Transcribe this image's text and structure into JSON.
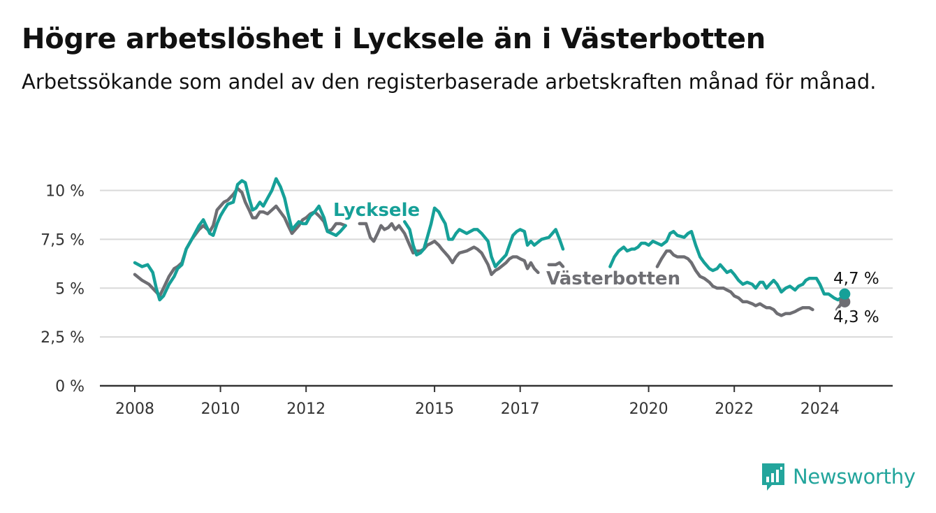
{
  "title": "Högre arbetslöshet i Lycksele än i Västerbotten",
  "subtitle": "Arbetssökande som andel av den registerbaserade arbetskraften månad för månad.",
  "brand": {
    "name": "Newsworthy",
    "icon": "bar-chart-logo-icon",
    "color": "#23a59c"
  },
  "colors": {
    "lycksele": "#16a098",
    "vasterbotten": "#6e6e73",
    "grid": "#d9d9d9",
    "axis": "#333333"
  },
  "chart_data": {
    "type": "line",
    "title": "Högre arbetslöshet i Lycksele än i Västerbotten",
    "xlabel": "",
    "ylabel": "",
    "ylim": [
      0,
      11
    ],
    "y_ticks": [
      0,
      2.5,
      5,
      7.5,
      10
    ],
    "y_tick_labels": [
      "0 %",
      "2,5 %",
      "5 %",
      "7,5 %",
      "10 %"
    ],
    "x_ticks": [
      2008,
      2010,
      2012,
      2015,
      2017,
      2020,
      2022,
      2024
    ],
    "x_tick_labels": [
      "2008",
      "2010",
      "2012",
      "2015",
      "2017",
      "2020",
      "2022",
      "2024"
    ],
    "grid": true,
    "legend": "inline labels",
    "series": [
      {
        "name": "Lycksele",
        "end_label": "4,7 %",
        "points": [
          [
            2008.0,
            6.3
          ],
          [
            2008.17,
            6.1
          ],
          [
            2008.3,
            6.2
          ],
          [
            2008.42,
            5.8
          ],
          [
            2008.5,
            5.0
          ],
          [
            2008.58,
            4.4
          ],
          [
            2008.67,
            4.6
          ],
          [
            2008.8,
            5.2
          ],
          [
            2008.92,
            5.6
          ],
          [
            2009.0,
            6.0
          ],
          [
            2009.1,
            6.2
          ],
          [
            2009.2,
            7.0
          ],
          [
            2009.33,
            7.5
          ],
          [
            2009.5,
            8.2
          ],
          [
            2009.6,
            8.5
          ],
          [
            2009.75,
            7.8
          ],
          [
            2009.83,
            7.7
          ],
          [
            2009.92,
            8.3
          ],
          [
            2010.0,
            8.7
          ],
          [
            2010.08,
            9.0
          ],
          [
            2010.17,
            9.3
          ],
          [
            2010.3,
            9.4
          ],
          [
            2010.4,
            10.3
          ],
          [
            2010.5,
            10.5
          ],
          [
            2010.58,
            10.4
          ],
          [
            2010.67,
            9.6
          ],
          [
            2010.75,
            9.0
          ],
          [
            2010.83,
            9.1
          ],
          [
            2010.92,
            9.4
          ],
          [
            2011.0,
            9.2
          ],
          [
            2011.1,
            9.6
          ],
          [
            2011.2,
            10.0
          ],
          [
            2011.3,
            10.6
          ],
          [
            2011.4,
            10.2
          ],
          [
            2011.5,
            9.6
          ],
          [
            2011.58,
            8.8
          ],
          [
            2011.67,
            8.0
          ],
          [
            2011.75,
            8.2
          ],
          [
            2011.83,
            8.4
          ],
          [
            2011.92,
            8.3
          ],
          [
            2012.0,
            8.3
          ],
          [
            2012.1,
            8.7
          ],
          [
            2012.2,
            8.9
          ],
          [
            2012.3,
            9.2
          ],
          [
            2012.42,
            8.6
          ],
          [
            2012.5,
            7.9
          ],
          [
            2012.6,
            7.8
          ],
          [
            2012.7,
            7.7
          ],
          [
            2012.8,
            7.9
          ],
          [
            2012.92,
            8.2
          ],
          [
            2013.0,
            null
          ],
          [
            2013.8,
            null
          ],
          [
            2014.1,
            null
          ],
          [
            2014.3,
            8.4
          ],
          [
            2014.42,
            8.0
          ],
          [
            2014.5,
            7.2
          ],
          [
            2014.58,
            6.7
          ],
          [
            2014.67,
            6.8
          ],
          [
            2014.75,
            7.0
          ],
          [
            2014.83,
            7.6
          ],
          [
            2014.92,
            8.3
          ],
          [
            2015.0,
            9.1
          ],
          [
            2015.1,
            8.9
          ],
          [
            2015.17,
            8.6
          ],
          [
            2015.25,
            8.3
          ],
          [
            2015.33,
            7.5
          ],
          [
            2015.42,
            7.5
          ],
          [
            2015.5,
            7.8
          ],
          [
            2015.58,
            8.0
          ],
          [
            2015.75,
            7.8
          ],
          [
            2015.92,
            8.0
          ],
          [
            2016.0,
            8.0
          ],
          [
            2016.1,
            7.8
          ],
          [
            2016.25,
            7.4
          ],
          [
            2016.33,
            6.6
          ],
          [
            2016.42,
            6.1
          ],
          [
            2016.5,
            6.3
          ],
          [
            2016.67,
            6.7
          ],
          [
            2016.75,
            7.2
          ],
          [
            2016.83,
            7.7
          ],
          [
            2016.92,
            7.9
          ],
          [
            2017.0,
            8.0
          ],
          [
            2017.1,
            7.9
          ],
          [
            2017.17,
            7.2
          ],
          [
            2017.25,
            7.4
          ],
          [
            2017.33,
            7.2
          ],
          [
            2017.5,
            7.5
          ],
          [
            2017.67,
            7.6
          ],
          [
            2017.75,
            7.8
          ],
          [
            2017.83,
            8.0
          ],
          [
            2017.92,
            7.5
          ],
          [
            2018.0,
            7.0
          ],
          [
            2018.08,
            null
          ],
          [
            2019.1,
            6.1
          ],
          [
            2019.2,
            6.6
          ],
          [
            2019.3,
            6.9
          ],
          [
            2019.42,
            7.1
          ],
          [
            2019.5,
            6.9
          ],
          [
            2019.6,
            7.0
          ],
          [
            2019.67,
            7.0
          ],
          [
            2019.75,
            7.1
          ],
          [
            2019.83,
            7.3
          ],
          [
            2019.92,
            7.3
          ],
          [
            2020.0,
            7.2
          ],
          [
            2020.1,
            7.4
          ],
          [
            2020.2,
            7.3
          ],
          [
            2020.3,
            7.2
          ],
          [
            2020.42,
            7.4
          ],
          [
            2020.5,
            7.8
          ],
          [
            2020.58,
            7.9
          ],
          [
            2020.67,
            7.7
          ],
          [
            2020.83,
            7.6
          ],
          [
            2020.92,
            7.8
          ],
          [
            2021.0,
            7.9
          ],
          [
            2021.1,
            7.2
          ],
          [
            2021.2,
            6.6
          ],
          [
            2021.3,
            6.3
          ],
          [
            2021.42,
            6.0
          ],
          [
            2021.5,
            5.9
          ],
          [
            2021.6,
            6.0
          ],
          [
            2021.67,
            6.2
          ],
          [
            2021.75,
            6.0
          ],
          [
            2021.83,
            5.8
          ],
          [
            2021.92,
            5.9
          ],
          [
            2022.0,
            5.7
          ],
          [
            2022.1,
            5.4
          ],
          [
            2022.2,
            5.2
          ],
          [
            2022.3,
            5.3
          ],
          [
            2022.42,
            5.2
          ],
          [
            2022.5,
            5.0
          ],
          [
            2022.6,
            5.3
          ],
          [
            2022.67,
            5.3
          ],
          [
            2022.75,
            5.0
          ],
          [
            2022.83,
            5.2
          ],
          [
            2022.92,
            5.4
          ],
          [
            2023.0,
            5.2
          ],
          [
            2023.1,
            4.8
          ],
          [
            2023.2,
            5.0
          ],
          [
            2023.3,
            5.1
          ],
          [
            2023.42,
            4.9
          ],
          [
            2023.5,
            5.1
          ],
          [
            2023.6,
            5.2
          ],
          [
            2023.67,
            5.4
          ],
          [
            2023.75,
            5.5
          ],
          [
            2023.83,
            5.5
          ],
          [
            2023.92,
            5.5
          ],
          [
            2024.0,
            5.2
          ],
          [
            2024.1,
            4.7
          ],
          [
            2024.2,
            4.7
          ],
          [
            2024.33,
            4.5
          ],
          [
            2024.42,
            4.4
          ],
          [
            2024.5,
            4.5
          ],
          [
            2024.58,
            4.7
          ]
        ]
      },
      {
        "name": "Västerbotten",
        "end_label": "4,3 %",
        "points": [
          [
            2008.0,
            5.7
          ],
          [
            2008.17,
            5.4
          ],
          [
            2008.33,
            5.2
          ],
          [
            2008.5,
            4.8
          ],
          [
            2008.58,
            4.6
          ],
          [
            2008.67,
            5.0
          ],
          [
            2008.8,
            5.6
          ],
          [
            2008.92,
            6.0
          ],
          [
            2009.0,
            6.1
          ],
          [
            2009.1,
            6.3
          ],
          [
            2009.2,
            7.0
          ],
          [
            2009.33,
            7.5
          ],
          [
            2009.5,
            8.0
          ],
          [
            2009.6,
            8.2
          ],
          [
            2009.75,
            7.9
          ],
          [
            2009.83,
            8.2
          ],
          [
            2009.92,
            9.0
          ],
          [
            2010.0,
            9.2
          ],
          [
            2010.08,
            9.4
          ],
          [
            2010.17,
            9.5
          ],
          [
            2010.3,
            9.8
          ],
          [
            2010.4,
            10.1
          ],
          [
            2010.5,
            9.9
          ],
          [
            2010.58,
            9.4
          ],
          [
            2010.67,
            9.0
          ],
          [
            2010.75,
            8.6
          ],
          [
            2010.83,
            8.6
          ],
          [
            2010.92,
            8.9
          ],
          [
            2011.0,
            8.9
          ],
          [
            2011.1,
            8.8
          ],
          [
            2011.2,
            9.0
          ],
          [
            2011.3,
            9.2
          ],
          [
            2011.4,
            8.9
          ],
          [
            2011.5,
            8.6
          ],
          [
            2011.58,
            8.2
          ],
          [
            2011.67,
            7.8
          ],
          [
            2011.75,
            8.0
          ],
          [
            2011.83,
            8.2
          ],
          [
            2011.92,
            8.5
          ],
          [
            2012.0,
            8.6
          ],
          [
            2012.1,
            8.8
          ],
          [
            2012.2,
            8.9
          ],
          [
            2012.3,
            8.7
          ],
          [
            2012.42,
            8.4
          ],
          [
            2012.5,
            7.9
          ],
          [
            2012.6,
            8.0
          ],
          [
            2012.7,
            8.3
          ],
          [
            2012.8,
            8.3
          ],
          [
            2012.92,
            8.2
          ],
          [
            2013.0,
            null
          ],
          [
            2013.25,
            8.3
          ],
          [
            2013.4,
            8.3
          ],
          [
            2013.5,
            7.6
          ],
          [
            2013.58,
            7.4
          ],
          [
            2013.67,
            7.8
          ],
          [
            2013.75,
            8.2
          ],
          [
            2013.83,
            8.0
          ],
          [
            2013.92,
            8.1
          ],
          [
            2014.0,
            8.3
          ],
          [
            2014.08,
            8.0
          ],
          [
            2014.17,
            8.2
          ],
          [
            2014.3,
            7.8
          ],
          [
            2014.42,
            7.2
          ],
          [
            2014.5,
            6.8
          ],
          [
            2014.58,
            6.9
          ],
          [
            2014.67,
            6.9
          ],
          [
            2014.75,
            7.0
          ],
          [
            2014.83,
            7.2
          ],
          [
            2014.92,
            7.3
          ],
          [
            2015.0,
            7.4
          ],
          [
            2015.1,
            7.2
          ],
          [
            2015.17,
            7.0
          ],
          [
            2015.25,
            6.8
          ],
          [
            2015.33,
            6.6
          ],
          [
            2015.42,
            6.3
          ],
          [
            2015.5,
            6.6
          ],
          [
            2015.58,
            6.8
          ],
          [
            2015.75,
            6.9
          ],
          [
            2015.92,
            7.1
          ],
          [
            2016.0,
            7.0
          ],
          [
            2016.1,
            6.8
          ],
          [
            2016.25,
            6.2
          ],
          [
            2016.33,
            5.7
          ],
          [
            2016.42,
            5.9
          ],
          [
            2016.5,
            6.0
          ],
          [
            2016.67,
            6.3
          ],
          [
            2016.75,
            6.5
          ],
          [
            2016.83,
            6.6
          ],
          [
            2016.92,
            6.6
          ],
          [
            2017.0,
            6.5
          ],
          [
            2017.1,
            6.4
          ],
          [
            2017.17,
            6.0
          ],
          [
            2017.25,
            6.3
          ],
          [
            2017.33,
            6.0
          ],
          [
            2017.42,
            5.8
          ],
          [
            2017.5,
            null
          ],
          [
            2017.67,
            6.2
          ],
          [
            2017.83,
            6.2
          ],
          [
            2017.92,
            6.3
          ],
          [
            2018.0,
            6.1
          ],
          [
            2018.08,
            null
          ],
          [
            2020.2,
            6.1
          ],
          [
            2020.3,
            6.5
          ],
          [
            2020.42,
            6.9
          ],
          [
            2020.5,
            6.9
          ],
          [
            2020.58,
            6.7
          ],
          [
            2020.67,
            6.6
          ],
          [
            2020.83,
            6.6
          ],
          [
            2020.92,
            6.5
          ],
          [
            2021.0,
            6.3
          ],
          [
            2021.1,
            5.9
          ],
          [
            2021.2,
            5.6
          ],
          [
            2021.3,
            5.5
          ],
          [
            2021.42,
            5.3
          ],
          [
            2021.5,
            5.1
          ],
          [
            2021.6,
            5.0
          ],
          [
            2021.67,
            5.0
          ],
          [
            2021.75,
            5.0
          ],
          [
            2021.83,
            4.9
          ],
          [
            2021.92,
            4.8
          ],
          [
            2022.0,
            4.6
          ],
          [
            2022.1,
            4.5
          ],
          [
            2022.2,
            4.3
          ],
          [
            2022.3,
            4.3
          ],
          [
            2022.42,
            4.2
          ],
          [
            2022.5,
            4.1
          ],
          [
            2022.6,
            4.2
          ],
          [
            2022.67,
            4.1
          ],
          [
            2022.75,
            4.0
          ],
          [
            2022.83,
            4.0
          ],
          [
            2022.92,
            3.9
          ],
          [
            2023.0,
            3.7
          ],
          [
            2023.1,
            3.6
          ],
          [
            2023.2,
            3.7
          ],
          [
            2023.3,
            3.7
          ],
          [
            2023.42,
            3.8
          ],
          [
            2023.5,
            3.9
          ],
          [
            2023.6,
            4.0
          ],
          [
            2023.67,
            4.0
          ],
          [
            2023.75,
            4.0
          ],
          [
            2023.83,
            3.9
          ],
          [
            2023.92,
            null
          ],
          [
            2024.4,
            3.9
          ],
          [
            2024.5,
            4.2
          ],
          [
            2024.58,
            4.3
          ]
        ]
      }
    ]
  }
}
